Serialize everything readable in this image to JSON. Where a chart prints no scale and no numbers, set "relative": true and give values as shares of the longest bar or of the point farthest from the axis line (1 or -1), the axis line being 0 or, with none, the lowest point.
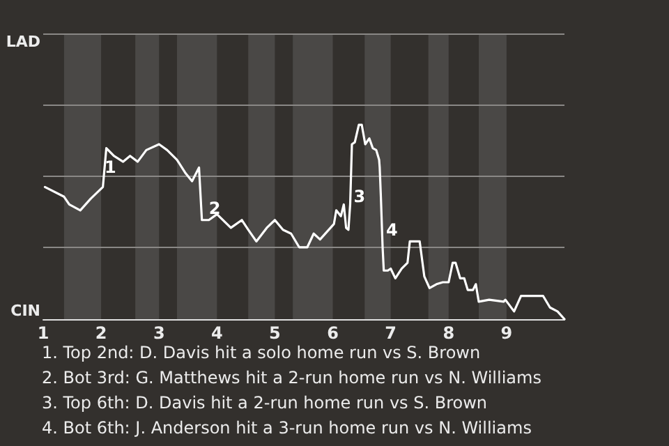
{
  "chart_data": {
    "type": "line",
    "relative": true,
    "x": [
      1.03,
      1.36,
      1.45,
      1.64,
      1.82,
      2.03,
      2.09,
      2.22,
      2.38,
      2.5,
      2.63,
      2.78,
      3.0,
      3.14,
      3.31,
      3.46,
      3.57,
      3.69,
      3.74,
      3.86,
      4.0,
      4.24,
      4.43,
      4.54,
      4.68,
      4.86,
      5.0,
      5.14,
      5.28,
      5.42,
      5.56,
      5.67,
      5.78,
      6.02,
      6.06,
      6.14,
      6.19,
      6.23,
      6.27,
      6.3,
      6.33,
      6.38,
      6.45,
      6.5,
      6.56,
      6.63,
      6.69,
      6.75,
      6.8,
      6.81,
      6.83,
      6.86,
      6.88,
      6.95,
      7.0,
      7.08,
      7.19,
      7.29,
      7.33,
      7.5,
      7.58,
      7.67,
      7.79,
      7.9,
      8.0,
      8.07,
      8.12,
      8.2,
      8.27,
      8.33,
      8.42,
      8.47,
      8.52,
      8.7,
      8.95,
      8.98,
      9.13,
      9.25,
      9.63,
      9.75,
      9.88,
      10
    ],
    "series": [
      {
        "color": "#ffffff",
        "values": [
          0.68,
          0.63,
          0.59,
          0.56,
          0.62,
          0.68,
          0.88,
          0.84,
          0.81,
          0.84,
          0.81,
          0.87,
          0.9,
          0.87,
          0.82,
          0.75,
          0.71,
          0.78,
          0.51,
          0.51,
          0.54,
          0.47,
          0.51,
          0.46,
          0.4,
          0.47,
          0.51,
          0.46,
          0.44,
          0.37,
          0.37,
          0.44,
          0.41,
          0.49,
          0.56,
          0.53,
          0.59,
          0.47,
          0.46,
          0.59,
          0.9,
          0.91,
          1,
          1,
          0.9,
          0.93,
          0.88,
          0.87,
          0.82,
          0.78,
          0.63,
          0.37,
          0.25,
          0.25,
          0.26,
          0.21,
          0.26,
          0.29,
          0.4,
          0.4,
          0.22,
          0.16,
          0.18,
          0.19,
          0.19,
          0.29,
          0.29,
          0.21,
          0.21,
          0.15,
          0.15,
          0.18,
          0.09,
          0.1,
          0.09,
          0.1,
          0.04,
          0.12,
          0.12,
          0.06,
          0.04,
          0
        ]
      }
    ],
    "xlim": [
      1,
      10
    ],
    "xticks": [
      1,
      2,
      3,
      4,
      5,
      6,
      7,
      8,
      9
    ],
    "ref_lines": [
      {
        "axis": "y",
        "value": 0.37,
        "color": "#8a8886"
      },
      {
        "axis": "y",
        "value": 0.74,
        "color": "#8a8886"
      },
      {
        "axis": "y",
        "value": 1.1,
        "color": "#8a8886"
      },
      {
        "axis": "y",
        "value": 1.47,
        "color": "#8a8886"
      }
    ],
    "marker": "none",
    "line_style": "solid",
    "bands": [
      {
        "axis": "x",
        "from": 1.36,
        "to": 2,
        "color": "#4a4846"
      },
      {
        "axis": "x",
        "from": 2.59,
        "to": 3,
        "color": "#4a4846"
      },
      {
        "axis": "x",
        "from": 3.31,
        "to": 4,
        "color": "#4a4846"
      },
      {
        "axis": "x",
        "from": 4.54,
        "to": 5,
        "color": "#4a4846"
      },
      {
        "axis": "x",
        "from": 5.31,
        "to": 6,
        "color": "#4a4846"
      },
      {
        "axis": "x",
        "from": 6.55,
        "to": 7,
        "color": "#4a4846"
      },
      {
        "axis": "x",
        "from": 7.65,
        "to": 8,
        "color": "#4a4846"
      },
      {
        "axis": "x",
        "from": 8.52,
        "to": 9,
        "color": "#4a4846"
      }
    ],
    "annotations": [
      "LAD",
      "CIN",
      {
        "text": "1",
        "x": 2.06,
        "y": 0.78
      },
      {
        "text": "2",
        "x": 3.86,
        "y": 0.57
      },
      {
        "text": "3",
        "x": 6.36,
        "y": 0.63
      },
      {
        "text": "4",
        "x": 6.92,
        "y": 0.46
      },
      "1. Top 2nd: D. Davis hit a solo home run vs S. Brown",
      "2. Bot 3rd: G. Matthews hit a 2-run home run vs N. Williams",
      "3. Top 6th: D. Davis hit a 2-run home run vs S. Brown",
      "4. Bot 6th: J. Anderson hit a 3-run home run vs N. Williams"
    ]
  }
}
